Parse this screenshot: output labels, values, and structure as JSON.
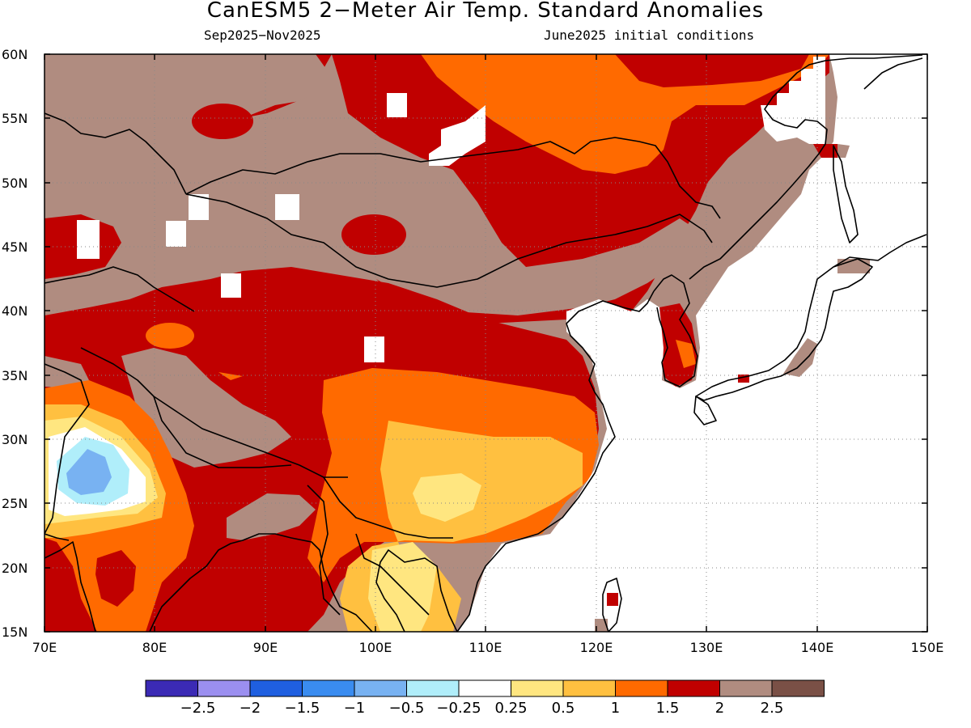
{
  "title": "CanESM5 2−Meter Air Temp. Standard Anomalies",
  "subtitle_left": "Sep2025−Nov2025",
  "subtitle_right": "June2025 initial conditions",
  "lat_labels": [
    "60N",
    "55N",
    "50N",
    "45N",
    "40N",
    "35N",
    "30N",
    "25N",
    "20N",
    "15N"
  ],
  "lon_labels": [
    "70E",
    "80E",
    "90E",
    "100E",
    "110E",
    "120E",
    "130E",
    "140E",
    "150E"
  ],
  "colorbar": {
    "colors": [
      "#3b2ab5",
      "#9b8ff0",
      "#1f5fe0",
      "#3a8cf0",
      "#78b2f2",
      "#b0eefa",
      "#ffffff",
      "#ffe680",
      "#ffc040",
      "#ff6a00",
      "#c00000",
      "#b08c80",
      "#7a5046"
    ],
    "labels": [
      "−2.5",
      "−2",
      "−1.5",
      "−1",
      "−0.5",
      "−0.25",
      "0.25",
      "0.5",
      "1",
      "1.5",
      "2",
      "2.5"
    ]
  },
  "palette": {
    "brown": "#b08c80",
    "darkbrown": "#7a5046",
    "red": "#c00000",
    "orange": "#ff6a00",
    "lightorange": "#ffc040",
    "yellow": "#ffe680",
    "white": "#ffffff",
    "lightblue": "#b0eefa",
    "blue": "#78b2f2"
  }
}
